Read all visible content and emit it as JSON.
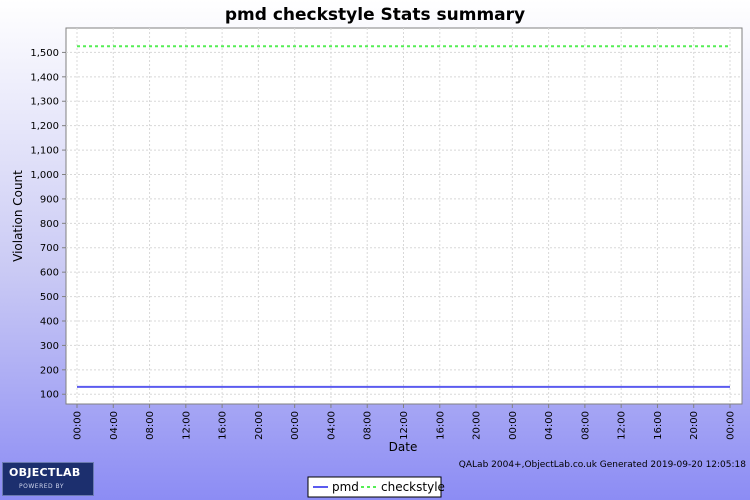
{
  "chart_data": {
    "type": "line",
    "title": "pmd checkstyle  Stats summary",
    "xlabel": "Date",
    "ylabel": "Violation Count",
    "x_ticks": [
      "00:00",
      "04:00",
      "08:00",
      "12:00",
      "16:00",
      "20:00",
      "00:00",
      "04:00",
      "08:00",
      "12:00",
      "16:00",
      "20:00",
      "00:00",
      "04:00",
      "08:00",
      "12:00",
      "16:00",
      "20:00",
      "00:00"
    ],
    "y_ticks": [
      "100",
      "200",
      "300",
      "400",
      "500",
      "600",
      "700",
      "800",
      "900",
      "1,000",
      "1,100",
      "1,200",
      "1,300",
      "1,400",
      "1,500"
    ],
    "y_tick_values": [
      100,
      200,
      300,
      400,
      500,
      600,
      700,
      800,
      900,
      1000,
      1100,
      1200,
      1300,
      1400,
      1500
    ],
    "ylim": [
      60,
      1600
    ],
    "x_range": [
      "00:00",
      "00:00"
    ],
    "series": [
      {
        "name": "pmd",
        "color": "#5b5bef",
        "style": "solid",
        "x": [
          "00:00",
          "00:00"
        ],
        "values": [
          130,
          130
        ]
      },
      {
        "name": "checkstyle",
        "color": "#55ee55",
        "style": "dashed",
        "x": [
          "00:00",
          "00:00"
        ],
        "values": [
          1525,
          1525
        ]
      }
    ],
    "grid": true,
    "legend_position": "bottom-center"
  },
  "footer": "QALab 2004+,ObjectLab.co.uk  Generated 2019-09-20 12:05:18",
  "logo": {
    "main": "OBJECTLAB",
    "sub": "POWERED BY"
  }
}
